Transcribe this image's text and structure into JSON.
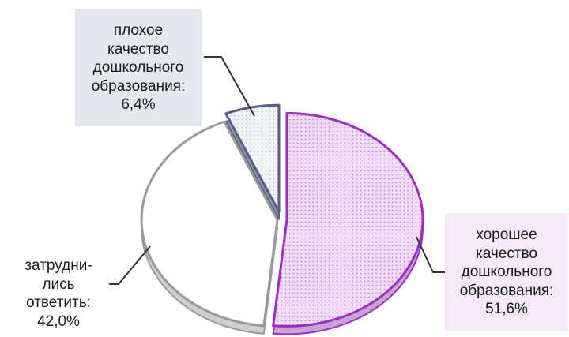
{
  "chart_data": {
    "type": "pie",
    "style": "exploded 3D pie",
    "slices": [
      {
        "label": "хорошее\nкачество\nдошкольного\nобразования:\n51,6%",
        "value": 51.6,
        "fill": "#f1d3f5",
        "stroke": "#9a2fc0",
        "pattern": "dotted"
      },
      {
        "label": "затрудни-\nлись\nответить:\n42,0%",
        "value": 42.0,
        "fill": "#ffffff",
        "stroke": "#9a9a9a",
        "pattern": "none"
      },
      {
        "label": "плохое\nкачество\nдошкольного\nобразования:\n6,4%",
        "value": 6.4,
        "fill": "#eef0f5",
        "stroke": "#5a5e80",
        "pattern": "dotted"
      }
    ],
    "title": "",
    "legend": "none"
  },
  "colors": {
    "poor_label_bg": "#e7e8ee",
    "good_label_bg": "#f5e8f8",
    "leader_line": "#333333"
  }
}
